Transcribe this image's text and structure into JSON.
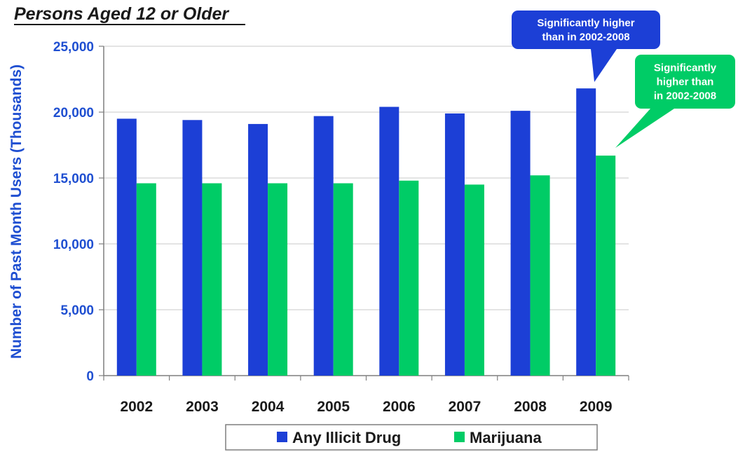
{
  "chart_data": {
    "type": "bar",
    "subtitle": "Persons Aged 12 or Older",
    "ylabel": "Number of Past Month Users (Thousands)",
    "xlabel": "",
    "categories": [
      "2002",
      "2003",
      "2004",
      "2005",
      "2006",
      "2007",
      "2008",
      "2009"
    ],
    "series": [
      {
        "name": "Any Illicit Drug",
        "color": "#1c3fd6",
        "values": [
          19500,
          19400,
          19100,
          19700,
          20400,
          19900,
          20100,
          21800
        ]
      },
      {
        "name": "Marijuana",
        "color": "#00cc66",
        "values": [
          14600,
          14600,
          14600,
          14600,
          14800,
          14500,
          15200,
          16700
        ]
      }
    ],
    "ylim": [
      0,
      25000
    ],
    "yticks": [
      "0",
      "5,000",
      "10,000",
      "15,000",
      "20,000",
      "25,000"
    ],
    "grid": true,
    "legend_position": "bottom",
    "annotations": [
      {
        "series": "Any Illicit Drug",
        "category": "2009",
        "lines": [
          "Significantly higher",
          "than in 2002-2008"
        ],
        "color": "#1c3fd6"
      },
      {
        "series": "Marijuana",
        "category": "2009",
        "lines": [
          "Significantly",
          "higher than",
          "in 2002-2008"
        ],
        "color": "#00cc66"
      }
    ]
  }
}
